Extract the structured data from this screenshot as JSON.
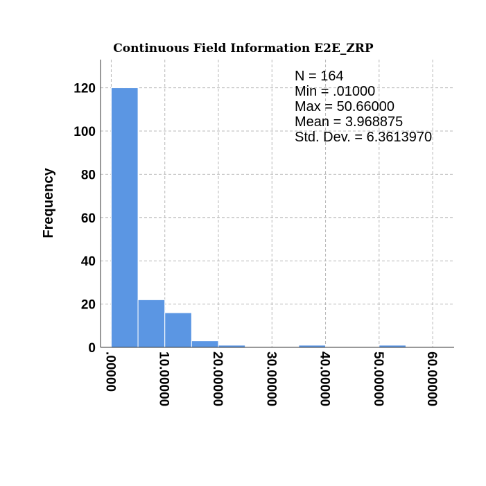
{
  "chart_data": {
    "type": "bar",
    "title": "Continuous Field Information E2E_ZRP",
    "xlabel": "",
    "ylabel": "Frequency",
    "bin_width": 5,
    "bins": [
      {
        "start": 0,
        "value": 120
      },
      {
        "start": 5,
        "value": 22
      },
      {
        "start": 10,
        "value": 16
      },
      {
        "start": 15,
        "value": 3
      },
      {
        "start": 20,
        "value": 1
      },
      {
        "start": 25,
        "value": 0
      },
      {
        "start": 30,
        "value": 0
      },
      {
        "start": 35,
        "value": 1
      },
      {
        "start": 40,
        "value": 0
      },
      {
        "start": 45,
        "value": 0
      },
      {
        "start": 50,
        "value": 1
      }
    ],
    "xlim": [
      -2,
      64
    ],
    "ylim": [
      0,
      133
    ],
    "x_ticks": [
      {
        "value": 0,
        "label": ".00000"
      },
      {
        "value": 10,
        "label": "10.00000"
      },
      {
        "value": 20,
        "label": "20.00000"
      },
      {
        "value": 30,
        "label": "30.00000"
      },
      {
        "value": 40,
        "label": "40.00000"
      },
      {
        "value": 50,
        "label": "50.00000"
      },
      {
        "value": 60,
        "label": "60.00000"
      }
    ],
    "y_ticks": [
      {
        "value": 0,
        "label": "0"
      },
      {
        "value": 20,
        "label": "20"
      },
      {
        "value": 40,
        "label": "40"
      },
      {
        "value": 60,
        "label": "60"
      },
      {
        "value": 80,
        "label": "80"
      },
      {
        "value": 100,
        "label": "100"
      },
      {
        "value": 120,
        "label": "120"
      }
    ],
    "grid": true,
    "bar_color": "#5b96e3",
    "stats": [
      "N = 164",
      "Min = .01000",
      "Max = 50.66000",
      "Mean = 3.968875",
      "Std. Dev. = 6.3613970"
    ]
  }
}
